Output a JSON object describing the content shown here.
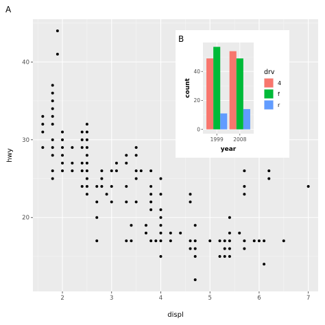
{
  "chart_data": [
    {
      "type": "scatter",
      "tag": "A",
      "xlabel": "displ",
      "ylabel": "hwy",
      "xlim": [
        1.4,
        7.2
      ],
      "ylim": [
        10.5,
        45.5
      ],
      "xticks": [
        2,
        3,
        4,
        5,
        6,
        7
      ],
      "yticks": [
        20,
        30,
        40
      ],
      "grid": true,
      "points": [
        [
          1.6,
          29
        ],
        [
          1.6,
          31
        ],
        [
          1.6,
          32
        ],
        [
          1.6,
          33
        ],
        [
          1.8,
          25
        ],
        [
          1.8,
          26
        ],
        [
          1.8,
          28
        ],
        [
          1.8,
          29
        ],
        [
          1.8,
          30
        ],
        [
          1.8,
          32
        ],
        [
          1.8,
          33
        ],
        [
          1.8,
          34
        ],
        [
          1.8,
          35
        ],
        [
          1.8,
          36
        ],
        [
          1.8,
          37
        ],
        [
          1.9,
          41
        ],
        [
          1.9,
          44
        ],
        [
          2.0,
          26
        ],
        [
          2.0,
          27
        ],
        [
          2.0,
          28
        ],
        [
          2.0,
          29
        ],
        [
          2.0,
          30
        ],
        [
          2.0,
          31
        ],
        [
          2.2,
          26
        ],
        [
          2.2,
          27
        ],
        [
          2.2,
          29
        ],
        [
          2.4,
          24
        ],
        [
          2.4,
          26
        ],
        [
          2.4,
          27
        ],
        [
          2.4,
          29
        ],
        [
          2.4,
          30
        ],
        [
          2.4,
          31
        ],
        [
          2.5,
          23
        ],
        [
          2.5,
          24
        ],
        [
          2.5,
          25
        ],
        [
          2.5,
          26
        ],
        [
          2.5,
          27
        ],
        [
          2.5,
          28
        ],
        [
          2.5,
          29
        ],
        [
          2.5,
          30
        ],
        [
          2.5,
          31
        ],
        [
          2.5,
          32
        ],
        [
          2.7,
          17
        ],
        [
          2.7,
          20
        ],
        [
          2.7,
          22
        ],
        [
          2.7,
          24
        ],
        [
          2.8,
          24
        ],
        [
          2.8,
          25
        ],
        [
          2.8,
          26
        ],
        [
          2.9,
          23
        ],
        [
          3.0,
          22
        ],
        [
          3.0,
          24
        ],
        [
          3.0,
          26
        ],
        [
          3.1,
          26
        ],
        [
          3.1,
          27
        ],
        [
          3.3,
          17
        ],
        [
          3.3,
          22
        ],
        [
          3.3,
          24
        ],
        [
          3.3,
          27
        ],
        [
          3.3,
          28
        ],
        [
          3.4,
          17
        ],
        [
          3.4,
          19
        ],
        [
          3.5,
          22
        ],
        [
          3.5,
          25
        ],
        [
          3.5,
          26
        ],
        [
          3.5,
          28
        ],
        [
          3.5,
          29
        ],
        [
          3.6,
          26
        ],
        [
          3.7,
          18
        ],
        [
          3.7,
          19
        ],
        [
          3.8,
          17
        ],
        [
          3.8,
          21
        ],
        [
          3.8,
          22
        ],
        [
          3.8,
          23
        ],
        [
          3.8,
          24
        ],
        [
          3.8,
          26
        ],
        [
          3.9,
          17
        ],
        [
          4.0,
          15
        ],
        [
          4.0,
          17
        ],
        [
          4.0,
          18
        ],
        [
          4.0,
          19
        ],
        [
          4.0,
          20
        ],
        [
          4.0,
          21
        ],
        [
          4.0,
          23
        ],
        [
          4.0,
          25
        ],
        [
          4.2,
          17
        ],
        [
          4.2,
          18
        ],
        [
          4.4,
          18
        ],
        [
          4.6,
          16
        ],
        [
          4.6,
          17
        ],
        [
          4.6,
          22
        ],
        [
          4.6,
          23
        ],
        [
          4.7,
          12
        ],
        [
          4.7,
          15
        ],
        [
          4.7,
          16
        ],
        [
          4.7,
          17
        ],
        [
          4.7,
          19
        ],
        [
          5.0,
          17
        ],
        [
          5.2,
          15
        ],
        [
          5.2,
          17
        ],
        [
          5.3,
          15
        ],
        [
          5.3,
          16
        ],
        [
          5.3,
          17
        ],
        [
          5.4,
          15
        ],
        [
          5.4,
          16
        ],
        [
          5.4,
          17
        ],
        [
          5.4,
          18
        ],
        [
          5.4,
          20
        ],
        [
          5.6,
          18
        ],
        [
          5.7,
          16
        ],
        [
          5.7,
          17
        ],
        [
          5.7,
          23
        ],
        [
          5.7,
          24
        ],
        [
          5.7,
          26
        ],
        [
          5.9,
          17
        ],
        [
          6.0,
          17
        ],
        [
          6.1,
          14
        ],
        [
          6.1,
          17
        ],
        [
          6.2,
          25
        ],
        [
          6.2,
          26
        ],
        [
          6.5,
          17
        ],
        [
          7.0,
          24
        ]
      ]
    },
    {
      "type": "bar",
      "tag": "B",
      "xlabel": "year",
      "ylabel": "count",
      "categories": [
        "1999",
        "2008"
      ],
      "yticks": [
        0,
        20,
        40
      ],
      "ylim": [
        -3,
        60
      ],
      "legend_title": "drv",
      "legend_position": "right",
      "series": [
        {
          "name": "4",
          "color": "#F8766D",
          "values": [
            49,
            54
          ]
        },
        {
          "name": "f",
          "color": "#00BA38",
          "values": [
            57,
            49
          ]
        },
        {
          "name": "r",
          "color": "#619CFF",
          "values": [
            11,
            14
          ]
        }
      ]
    }
  ]
}
